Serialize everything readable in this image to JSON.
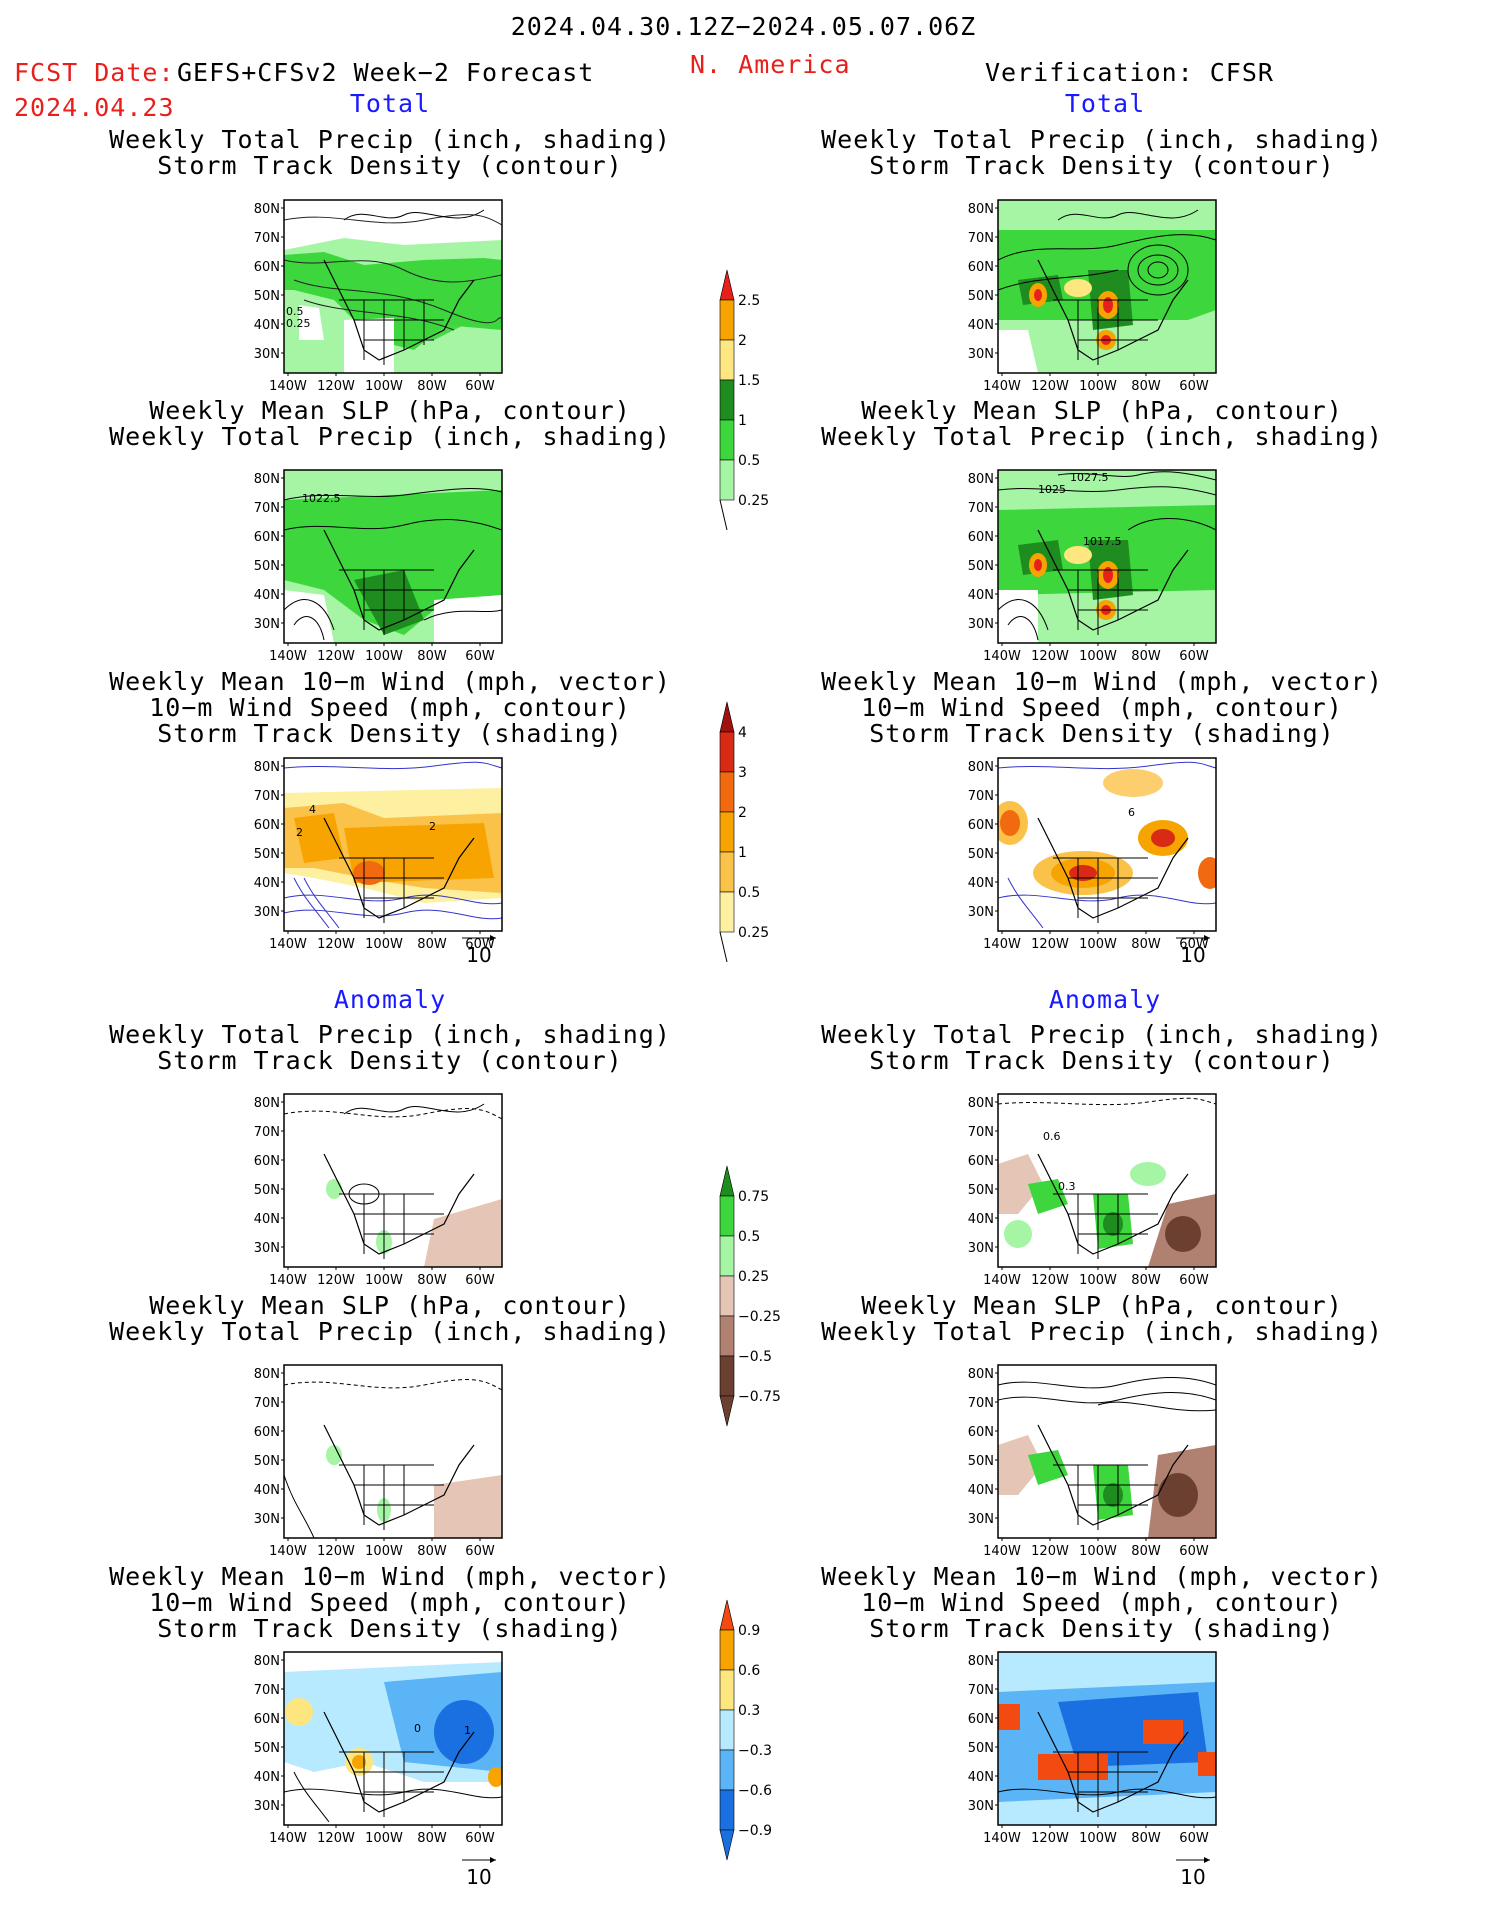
{
  "header": {
    "date_range": "2024.04.30.12Z−2024.05.07.06Z",
    "fcst_label": "FCST Date:",
    "model": "GEFS+CFSv2 Week−2 Forecast",
    "fcst_date": "2024.04.23",
    "region": "N. America",
    "verification": "Verification: CFSR"
  },
  "sections": {
    "total": "Total",
    "anomaly": "Anomaly"
  },
  "titles": {
    "precip_track": [
      "Weekly Total Precip (inch, shading)",
      "Storm Track Density (contour)"
    ],
    "slp_precip": [
      "Weekly Mean SLP (hPa, contour)",
      "Weekly Total Precip (inch, shading)"
    ],
    "wind_track": [
      "Weekly Mean 10−m Wind (mph, vector)",
      "10−m Wind Speed (mph, contour)",
      "Storm Track Density (shading)"
    ]
  },
  "axes": {
    "lat_labels": [
      "80N",
      "70N",
      "60N",
      "50N",
      "40N",
      "30N"
    ],
    "lon_labels": [
      "140W",
      "120W",
      "100W",
      "80W",
      "60W"
    ]
  },
  "vector_ref": "10",
  "colorbars": {
    "precip_total": {
      "labels": [
        "2.5",
        "2",
        "1.5",
        "1",
        "0.5",
        "0.25"
      ],
      "colors": [
        "#e8201c",
        "#f7a400",
        "#fee680",
        "#1e8c1e",
        "#3dd63d",
        "#a5f5a5"
      ]
    },
    "track_total": {
      "labels": [
        "4",
        "3",
        "2",
        "1",
        "0.5",
        "0.25"
      ],
      "colors": [
        "#a01010",
        "#d82a14",
        "#f26a10",
        "#f7a400",
        "#fbc24a",
        "#fdf0a0"
      ]
    },
    "precip_anom": {
      "labels": [
        "0.75",
        "0.5",
        "0.25",
        "−0.25",
        "−0.5",
        "−0.75"
      ],
      "colors": [
        "#1e8c1e",
        "#3dd63d",
        "#a5f5a5",
        "#e5c5b5",
        "#b08070",
        "#6b4030"
      ]
    },
    "track_anom": {
      "labels": [
        "0.9",
        "0.6",
        "0.3",
        "−0.3",
        "−0.6",
        "−0.9"
      ],
      "colors": [
        "#f24a10",
        "#f7a400",
        "#fde680",
        "#b8eaff",
        "#5ab4f5",
        "#1a70e0"
      ]
    }
  },
  "map_labels": {
    "total_left_precip": [
      "0.5",
      "0.25"
    ],
    "total_left_slp": "1022.5",
    "total_right_slp": [
      "1027.5",
      "1025",
      "1017.5"
    ],
    "wind_left": [
      "4",
      "2",
      "2"
    ],
    "wind_right": [
      "6"
    ],
    "anom_left_wind": [
      "0",
      "1"
    ],
    "anom_right_precip": [
      "0.6",
      "0.3"
    ]
  }
}
